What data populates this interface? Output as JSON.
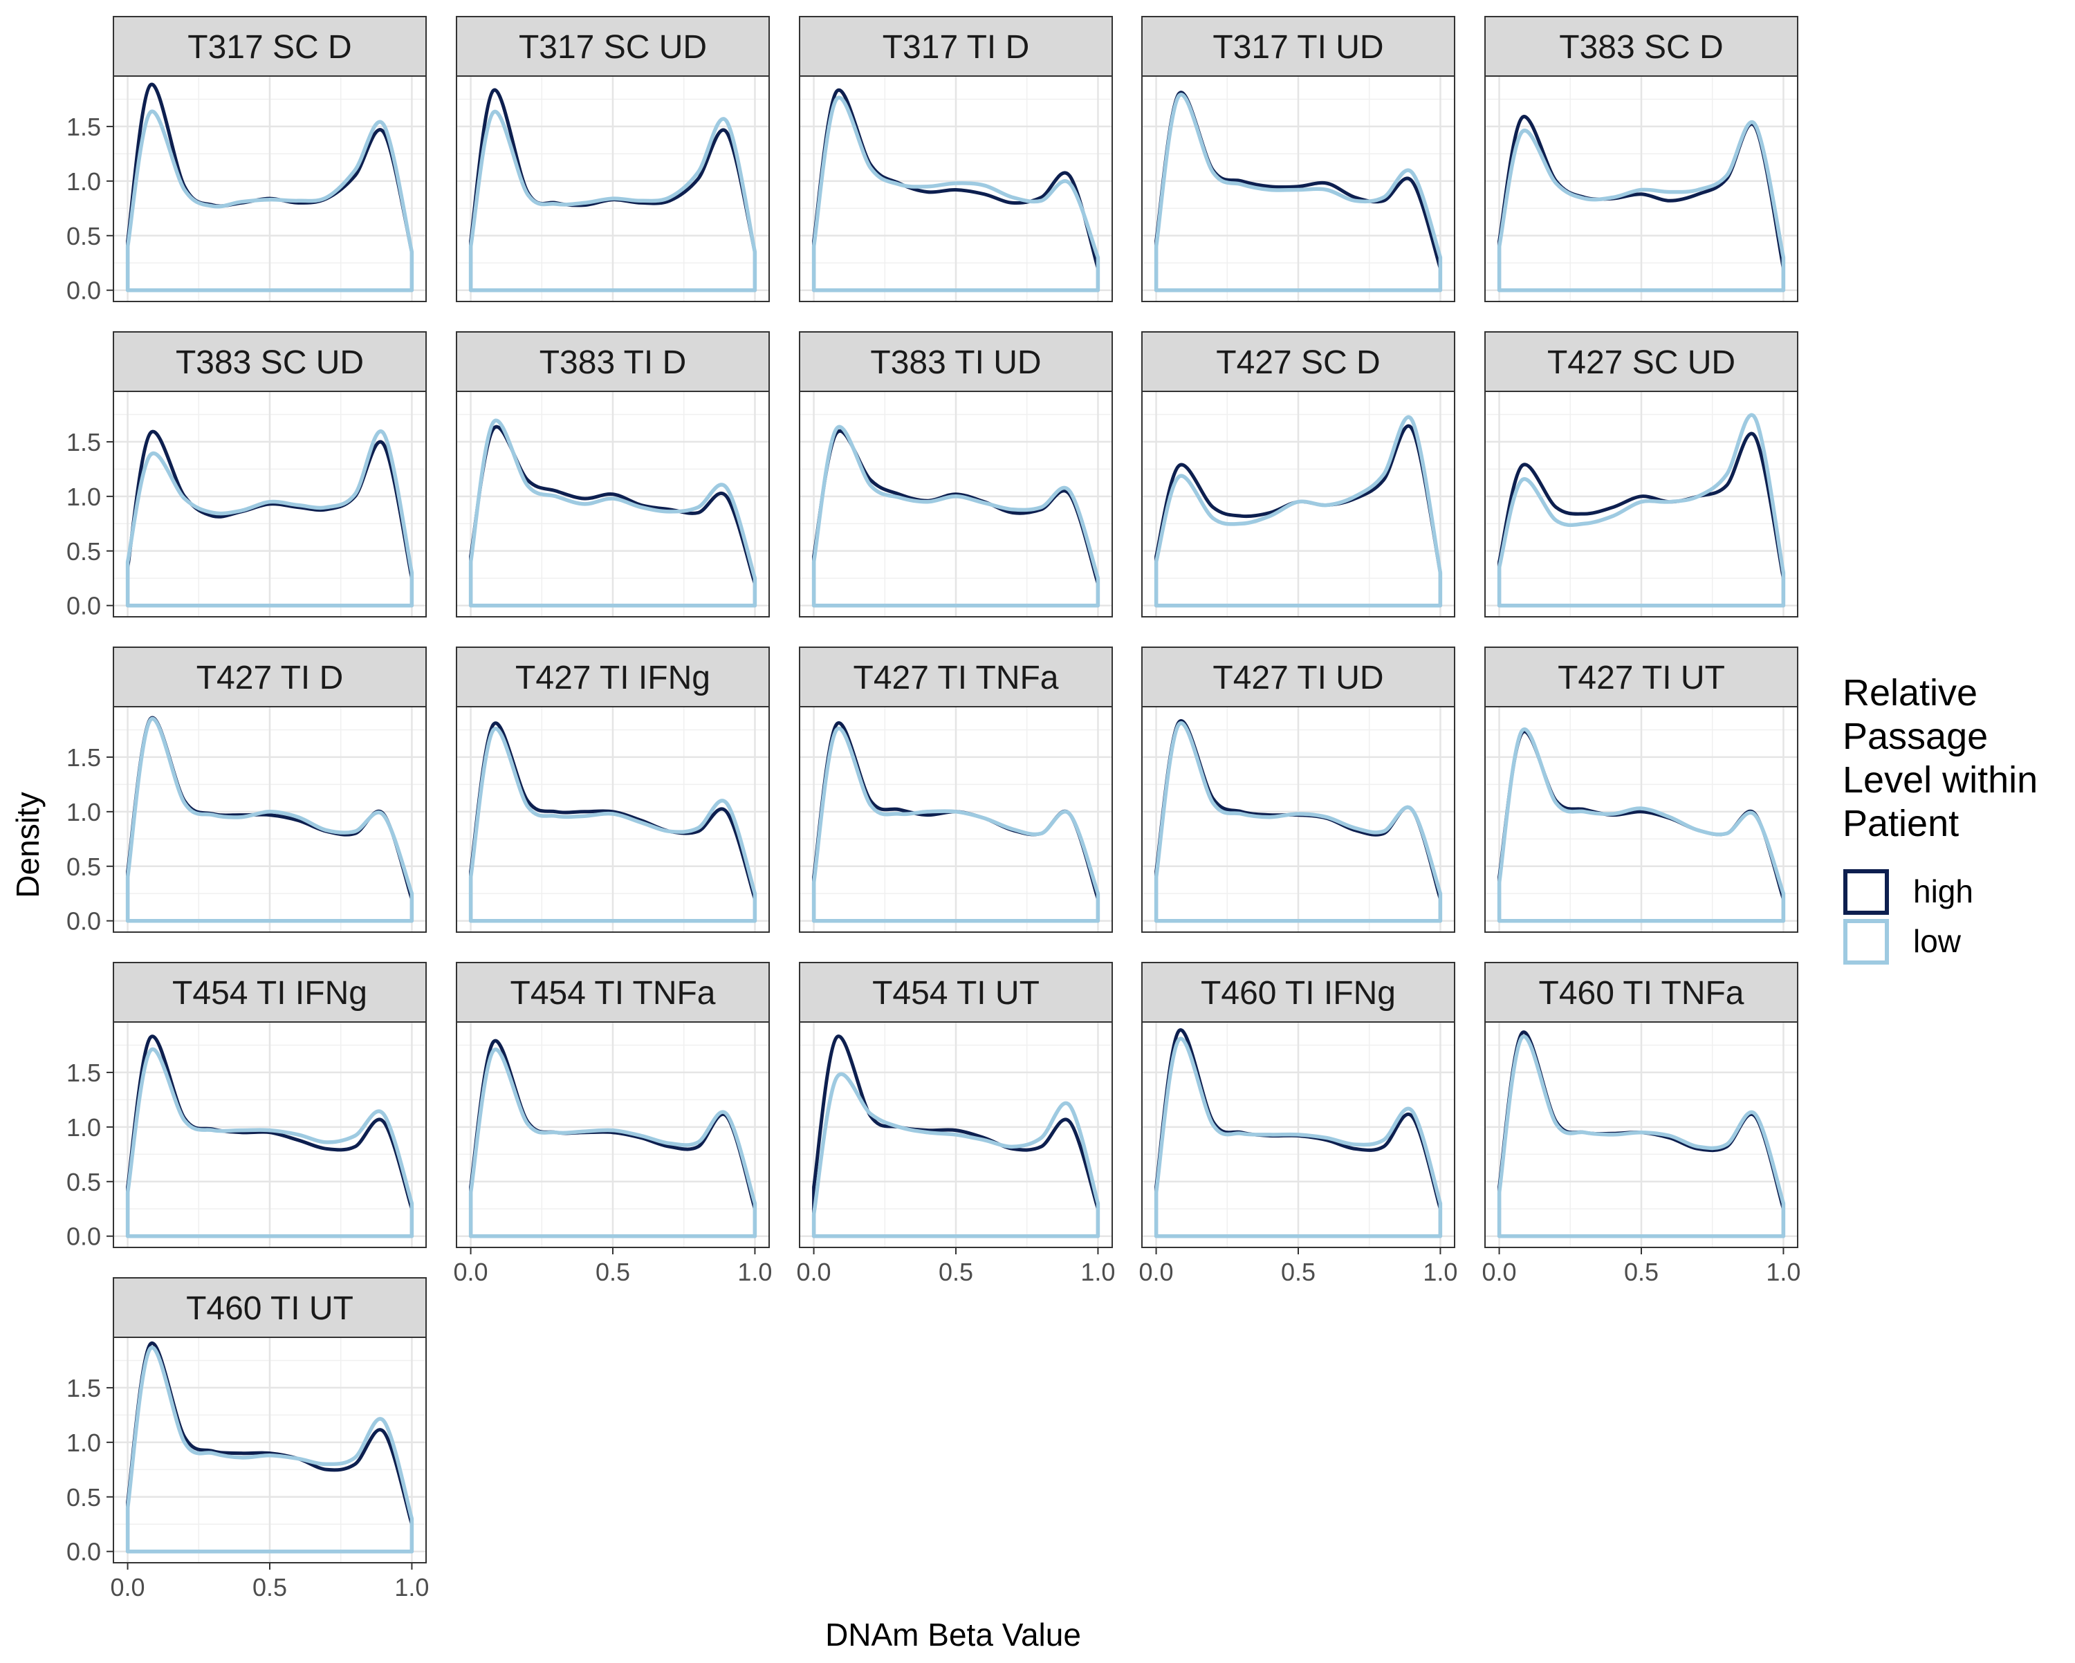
{
  "chart_data": {
    "type": "line",
    "xlabel": "DNAm Beta Value",
    "ylabel": "Density",
    "xlim": [
      0,
      1
    ],
    "ylim": [
      0,
      1.9
    ],
    "x_ticks": [
      "0.0",
      "0.5",
      "1.0"
    ],
    "y_ticks": [
      "0.0",
      "0.5",
      "1.0",
      "1.5"
    ],
    "grid": true,
    "legend": {
      "title_lines": [
        "Relative",
        "Passage",
        "Level within",
        "Patient"
      ],
      "placement": "right",
      "entries": [
        {
          "name": "high",
          "color": "#0d1f4f"
        },
        {
          "name": "low",
          "color": "#9ecae1"
        }
      ]
    },
    "x": [
      0.0,
      0.08,
      0.2,
      0.3,
      0.4,
      0.5,
      0.6,
      0.7,
      0.8,
      0.9,
      1.0
    ],
    "panels": [
      {
        "title": "T317 SC D",
        "series": [
          {
            "name": "high",
            "values": [
              0.45,
              1.88,
              0.95,
              0.78,
              0.8,
              0.84,
              0.8,
              0.84,
              1.05,
              1.45,
              0.35
            ]
          },
          {
            "name": "low",
            "values": [
              0.4,
              1.63,
              0.92,
              0.77,
              0.81,
              0.83,
              0.82,
              0.85,
              1.1,
              1.52,
              0.35
            ]
          }
        ]
      },
      {
        "title": "T317 SC UD",
        "series": [
          {
            "name": "high",
            "values": [
              0.45,
              1.83,
              0.9,
              0.8,
              0.78,
              0.83,
              0.8,
              0.82,
              1.02,
              1.45,
              0.35
            ]
          },
          {
            "name": "low",
            "values": [
              0.4,
              1.63,
              0.88,
              0.79,
              0.8,
              0.84,
              0.82,
              0.85,
              1.08,
              1.55,
              0.35
            ]
          }
        ]
      },
      {
        "title": "T317 TI D",
        "series": [
          {
            "name": "high",
            "values": [
              0.45,
              1.82,
              1.15,
              0.98,
              0.9,
              0.92,
              0.88,
              0.8,
              0.85,
              1.05,
              0.2
            ]
          },
          {
            "name": "low",
            "values": [
              0.4,
              1.75,
              1.12,
              0.97,
              0.95,
              0.98,
              0.96,
              0.85,
              0.82,
              0.98,
              0.3
            ]
          }
        ]
      },
      {
        "title": "T317 TI UD",
        "series": [
          {
            "name": "high",
            "values": [
              0.45,
              1.8,
              1.1,
              1.0,
              0.95,
              0.95,
              0.98,
              0.85,
              0.82,
              1.0,
              0.2
            ]
          },
          {
            "name": "low",
            "values": [
              0.4,
              1.78,
              1.08,
              0.97,
              0.92,
              0.92,
              0.92,
              0.82,
              0.85,
              1.08,
              0.3
            ]
          }
        ]
      },
      {
        "title": "T383 SC D",
        "series": [
          {
            "name": "high",
            "values": [
              0.45,
              1.58,
              1.0,
              0.85,
              0.84,
              0.88,
              0.82,
              0.88,
              1.02,
              1.5,
              0.2
            ]
          },
          {
            "name": "low",
            "values": [
              0.4,
              1.45,
              0.98,
              0.84,
              0.85,
              0.92,
              0.9,
              0.92,
              1.05,
              1.52,
              0.3
            ]
          }
        ]
      },
      {
        "title": "T383 SC UD",
        "series": [
          {
            "name": "high",
            "values": [
              0.35,
              1.58,
              1.0,
              0.82,
              0.86,
              0.93,
              0.9,
              0.88,
              1.0,
              1.48,
              0.25
            ]
          },
          {
            "name": "low",
            "values": [
              0.4,
              1.38,
              0.98,
              0.85,
              0.87,
              0.95,
              0.92,
              0.9,
              1.02,
              1.58,
              0.3
            ]
          }
        ]
      },
      {
        "title": "T383 TI D",
        "series": [
          {
            "name": "high",
            "values": [
              0.45,
              1.62,
              1.15,
              1.05,
              0.98,
              1.02,
              0.92,
              0.88,
              0.85,
              1.0,
              0.2
            ]
          },
          {
            "name": "low",
            "values": [
              0.4,
              1.68,
              1.1,
              1.0,
              0.93,
              0.98,
              0.9,
              0.86,
              0.9,
              1.08,
              0.25
            ]
          }
        ]
      },
      {
        "title": "T383 TI UD",
        "series": [
          {
            "name": "high",
            "values": [
              0.45,
              1.58,
              1.15,
              1.02,
              0.96,
              1.02,
              0.95,
              0.85,
              0.88,
              1.02,
              0.2
            ]
          },
          {
            "name": "low",
            "values": [
              0.4,
              1.62,
              1.1,
              0.99,
              0.95,
              1.0,
              0.94,
              0.88,
              0.9,
              1.05,
              0.25
            ]
          }
        ]
      },
      {
        "title": "T427 SC D",
        "series": [
          {
            "name": "high",
            "values": [
              0.45,
              1.28,
              0.9,
              0.82,
              0.85,
              0.95,
              0.92,
              0.98,
              1.15,
              1.62,
              0.3
            ]
          },
          {
            "name": "low",
            "values": [
              0.4,
              1.18,
              0.8,
              0.75,
              0.82,
              0.95,
              0.92,
              1.0,
              1.2,
              1.7,
              0.3
            ]
          }
        ]
      },
      {
        "title": "T427 SC UD",
        "series": [
          {
            "name": "high",
            "values": [
              0.4,
              1.28,
              0.9,
              0.84,
              0.9,
              1.0,
              0.95,
              1.0,
              1.1,
              1.55,
              0.25
            ]
          },
          {
            "name": "low",
            "values": [
              0.35,
              1.15,
              0.78,
              0.75,
              0.82,
              0.95,
              0.95,
              1.0,
              1.2,
              1.72,
              0.3
            ]
          }
        ]
      },
      {
        "title": "T427 TI D",
        "series": [
          {
            "name": "high",
            "values": [
              0.45,
              1.85,
              1.1,
              0.98,
              0.97,
              0.97,
              0.92,
              0.82,
              0.8,
              0.98,
              0.2
            ]
          },
          {
            "name": "low",
            "values": [
              0.4,
              1.84,
              1.08,
              0.97,
              0.95,
              1.0,
              0.95,
              0.83,
              0.82,
              0.97,
              0.25
            ]
          }
        ]
      },
      {
        "title": "T427 TI IFNg",
        "series": [
          {
            "name": "high",
            "values": [
              0.45,
              1.8,
              1.1,
              1.0,
              1.0,
              1.0,
              0.92,
              0.82,
              0.82,
              1.0,
              0.2
            ]
          },
          {
            "name": "low",
            "values": [
              0.4,
              1.75,
              1.05,
              0.96,
              0.96,
              0.98,
              0.9,
              0.82,
              0.85,
              1.08,
              0.25
            ]
          }
        ]
      },
      {
        "title": "T427 TI TNFa",
        "series": [
          {
            "name": "high",
            "values": [
              0.4,
              1.8,
              1.1,
              1.02,
              0.97,
              1.0,
              0.94,
              0.83,
              0.8,
              0.98,
              0.2
            ]
          },
          {
            "name": "low",
            "values": [
              0.35,
              1.75,
              1.06,
              0.98,
              1.0,
              1.0,
              0.94,
              0.84,
              0.8,
              0.98,
              0.25
            ]
          }
        ]
      },
      {
        "title": "T427 TI UD",
        "series": [
          {
            "name": "high",
            "values": [
              0.45,
              1.82,
              1.12,
              1.0,
              0.97,
              0.97,
              0.94,
              0.83,
              0.8,
              1.02,
              0.2
            ]
          },
          {
            "name": "low",
            "values": [
              0.4,
              1.8,
              1.08,
              0.98,
              0.95,
              0.98,
              0.95,
              0.85,
              0.82,
              1.02,
              0.25
            ]
          }
        ]
      },
      {
        "title": "T427 TI UT",
        "series": [
          {
            "name": "high",
            "values": [
              0.4,
              1.72,
              1.1,
              1.02,
              0.97,
              1.0,
              0.94,
              0.83,
              0.8,
              0.98,
              0.2
            ]
          },
          {
            "name": "low",
            "values": [
              0.35,
              1.74,
              1.08,
              1.0,
              0.98,
              1.03,
              0.95,
              0.83,
              0.8,
              0.97,
              0.25
            ]
          }
        ]
      },
      {
        "title": "T454 TI IFNg",
        "series": [
          {
            "name": "high",
            "values": [
              0.45,
              1.82,
              1.08,
              0.98,
              0.95,
              0.95,
              0.88,
              0.8,
              0.82,
              1.05,
              0.25
            ]
          },
          {
            "name": "low",
            "values": [
              0.4,
              1.7,
              1.06,
              0.97,
              0.97,
              0.97,
              0.93,
              0.86,
              0.92,
              1.12,
              0.3
            ]
          }
        ]
      },
      {
        "title": "T454 TI TNFa",
        "series": [
          {
            "name": "high",
            "values": [
              0.45,
              1.78,
              1.05,
              0.95,
              0.95,
              0.95,
              0.9,
              0.82,
              0.82,
              1.1,
              0.25
            ]
          },
          {
            "name": "low",
            "values": [
              0.4,
              1.7,
              1.03,
              0.95,
              0.96,
              0.97,
              0.92,
              0.85,
              0.86,
              1.12,
              0.3
            ]
          }
        ]
      },
      {
        "title": "T454 TI UT",
        "series": [
          {
            "name": "high",
            "values": [
              0.45,
              1.82,
              1.1,
              1.0,
              0.97,
              0.97,
              0.9,
              0.8,
              0.82,
              1.05,
              0.25
            ]
          },
          {
            "name": "low",
            "values": [
              0.2,
              1.45,
              1.12,
              1.0,
              0.95,
              0.93,
              0.88,
              0.82,
              0.9,
              1.2,
              0.3
            ]
          }
        ]
      },
      {
        "title": "T460 TI IFNg",
        "series": [
          {
            "name": "high",
            "values": [
              0.45,
              1.88,
              1.05,
              0.95,
              0.92,
              0.92,
              0.88,
              0.8,
              0.82,
              1.1,
              0.25
            ]
          },
          {
            "name": "low",
            "values": [
              0.4,
              1.8,
              1.02,
              0.94,
              0.93,
              0.93,
              0.9,
              0.84,
              0.88,
              1.15,
              0.3
            ]
          }
        ]
      },
      {
        "title": "T460 TI TNFa",
        "series": [
          {
            "name": "high",
            "values": [
              0.45,
              1.86,
              1.05,
              0.95,
              0.94,
              0.95,
              0.9,
              0.8,
              0.82,
              1.1,
              0.25
            ]
          },
          {
            "name": "low",
            "values": [
              0.4,
              1.82,
              1.03,
              0.95,
              0.93,
              0.95,
              0.92,
              0.82,
              0.84,
              1.12,
              0.3
            ]
          }
        ]
      },
      {
        "title": "T460 TI UT",
        "series": [
          {
            "name": "high",
            "values": [
              0.45,
              1.9,
              1.05,
              0.92,
              0.9,
              0.9,
              0.85,
              0.75,
              0.8,
              1.1,
              0.25
            ]
          },
          {
            "name": "low",
            "values": [
              0.4,
              1.86,
              1.0,
              0.9,
              0.86,
              0.88,
              0.85,
              0.8,
              0.86,
              1.2,
              0.3
            ]
          }
        ]
      }
    ]
  }
}
